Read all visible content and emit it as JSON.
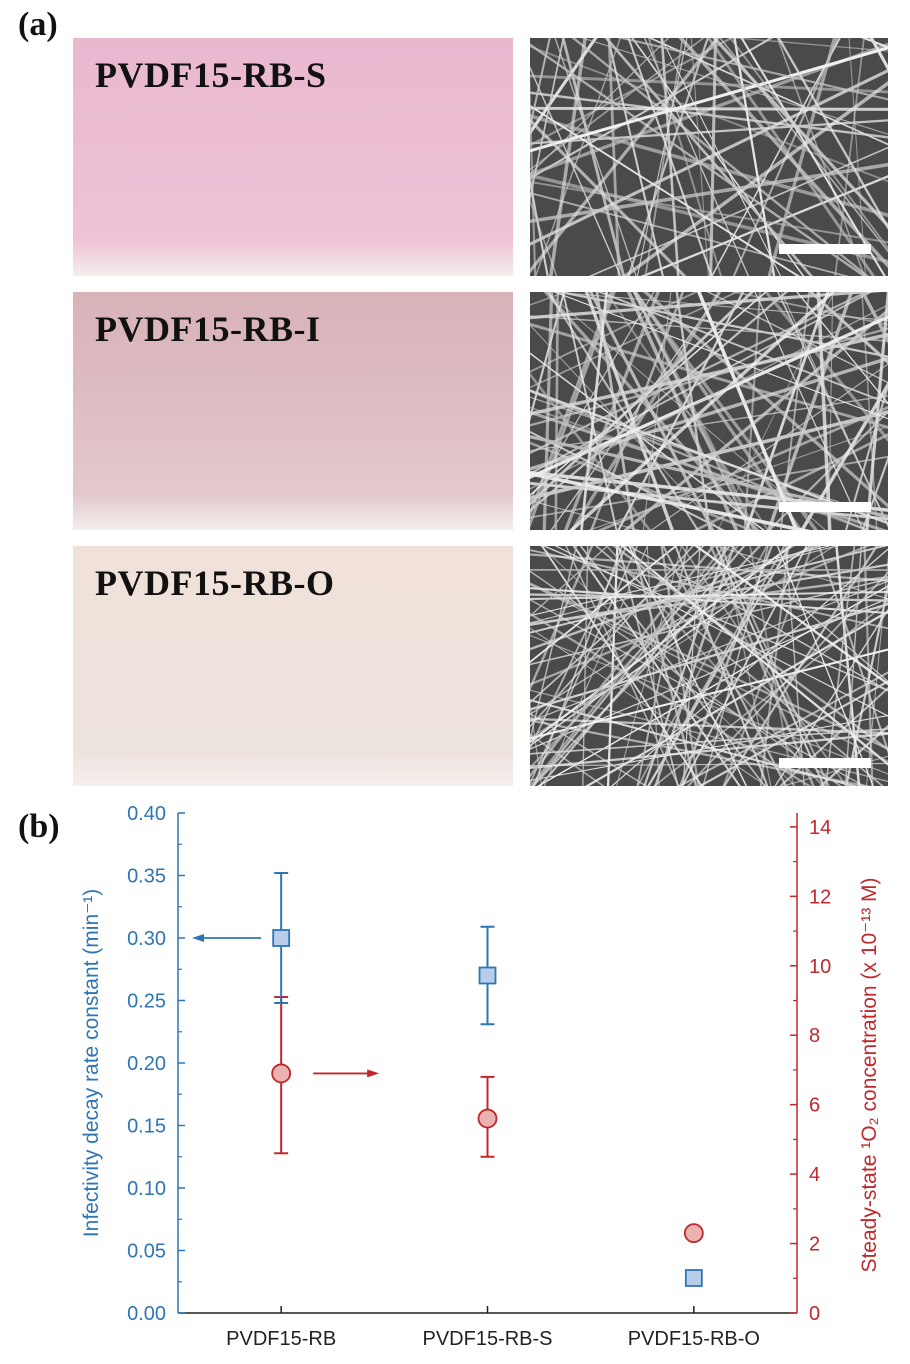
{
  "panel_a": {
    "label": "(a)",
    "photos": [
      {
        "label": "PVDF15-RB-S",
        "color_top": "#e8b8cf",
        "color_bottom": "#efc2d6"
      },
      {
        "label": "PVDF15-RB-I",
        "color_top": "#d8b2b8",
        "color_bottom": "#e2c8cc"
      },
      {
        "label": "PVDF15-RB-O",
        "color_top": "#f0e2da",
        "color_bottom": "#ede3dd"
      }
    ]
  },
  "panel_b": {
    "label": "(b)"
  },
  "chart_data": {
    "type": "scatter",
    "categories": [
      "PVDF15-RB",
      "PVDF15-RB-S",
      "PVDF15-RB-O"
    ],
    "left_axis": {
      "label": "Infectivity decay rate constant (min⁻¹)",
      "ylim": [
        0.0,
        0.4
      ],
      "ticks": [
        "0.00",
        "0.05",
        "0.10",
        "0.15",
        "0.20",
        "0.25",
        "0.30",
        "0.35",
        "0.40"
      ],
      "color": "#2e75b6"
    },
    "right_axis": {
      "label": "Steady-state ¹O₂ concentration (x 10⁻¹³ M)",
      "ylim": [
        0,
        14.4
      ],
      "ticks": [
        "0",
        "2",
        "4",
        "6",
        "8",
        "10",
        "12",
        "14"
      ],
      "color": "#c0282d"
    },
    "series": [
      {
        "axis": "left",
        "marker": "square",
        "values": [
          0.3,
          0.27,
          0.028
        ],
        "err_low": [
          0.248,
          0.231,
          0.022
        ],
        "err_high": [
          0.352,
          0.309,
          0.032
        ],
        "color": "#2e75b6",
        "fill": "#b7cde8"
      },
      {
        "axis": "right",
        "marker": "circle",
        "values": [
          6.9,
          5.6,
          2.3
        ],
        "err_low": [
          4.6,
          4.5,
          2.2
        ],
        "err_high": [
          9.1,
          6.8,
          2.4
        ],
        "color": "#c0282d",
        "fill": "#eab3b0"
      }
    ],
    "annotations": [
      {
        "type": "arrow",
        "direction": "left",
        "points_to": "left axis",
        "color": "#2e75b6"
      },
      {
        "type": "arrow",
        "direction": "right",
        "points_to": "right axis",
        "color": "#c0282d"
      }
    ],
    "grid": false
  }
}
